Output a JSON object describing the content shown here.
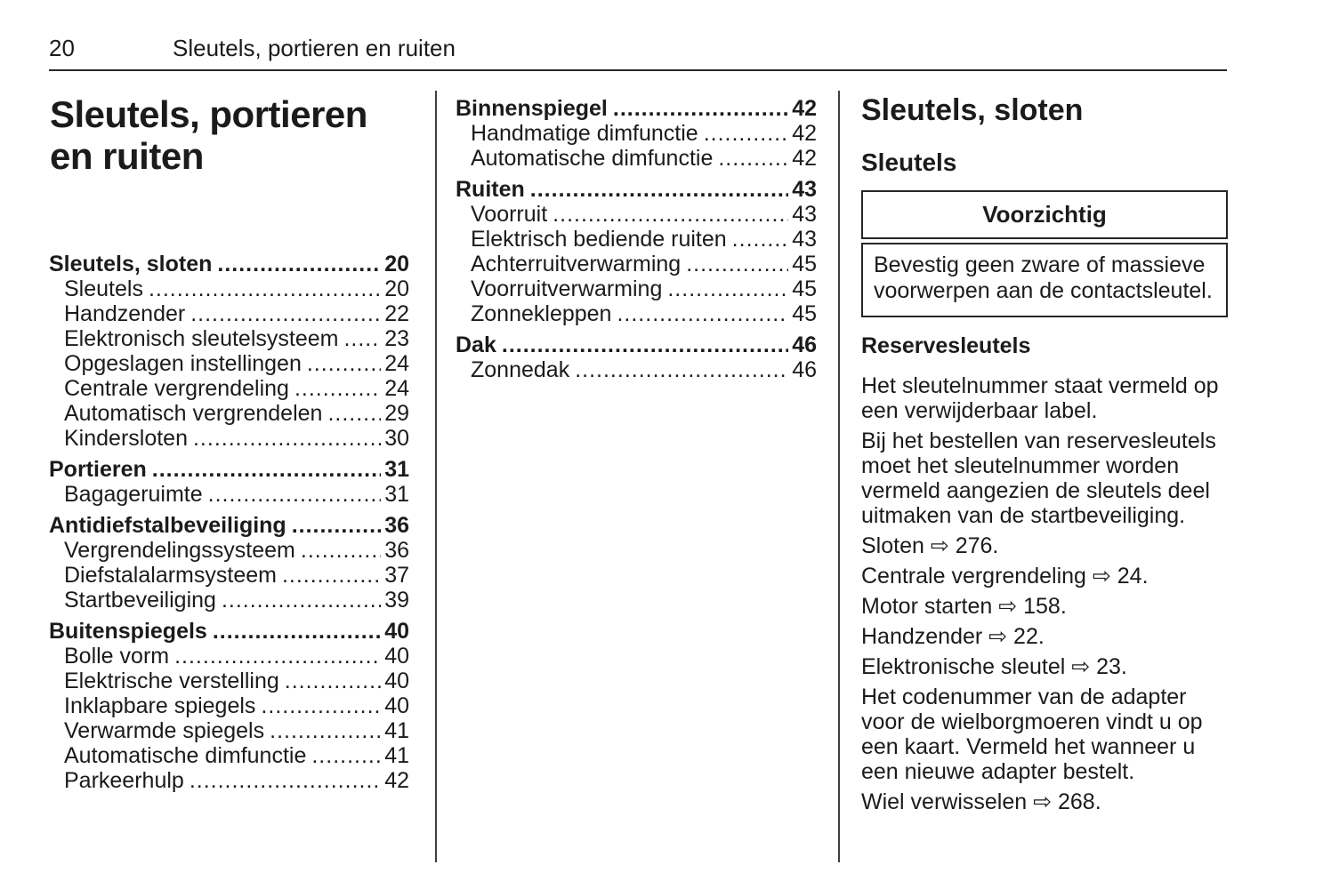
{
  "page": {
    "number": "20",
    "header_title": "Sleutels, portieren en ruiten"
  },
  "column1": {
    "title": "Sleutels, portieren en ruiten",
    "toc": [
      {
        "label": "Sleutels, sloten",
        "page": "20",
        "bold": true
      },
      {
        "label": "Sleutels",
        "page": "20",
        "indent": true
      },
      {
        "label": "Handzender",
        "page": "22",
        "indent": true
      },
      {
        "label": "Elektronisch sleutelsysteem",
        "page": "23",
        "indent": true
      },
      {
        "label": "Opgeslagen instellingen",
        "page": "24",
        "indent": true
      },
      {
        "label": "Centrale vergrendeling",
        "page": "24",
        "indent": true
      },
      {
        "label": "Automatisch vergrendelen",
        "page": "29",
        "indent": true
      },
      {
        "label": "Kindersloten",
        "page": "30",
        "indent": true
      },
      {
        "label": "Portieren",
        "page": "31",
        "bold": true
      },
      {
        "label": "Bagageruimte",
        "page": "31",
        "indent": true
      },
      {
        "label": "Antidiefstalbeveiliging",
        "page": "36",
        "bold": true
      },
      {
        "label": "Vergrendelingssysteem",
        "page": "36",
        "indent": true
      },
      {
        "label": "Diefstalalarmsysteem",
        "page": "37",
        "indent": true
      },
      {
        "label": "Startbeveiliging",
        "page": "39",
        "indent": true
      },
      {
        "label": "Buitenspiegels",
        "page": "40",
        "bold": true
      },
      {
        "label": "Bolle vorm",
        "page": "40",
        "indent": true
      },
      {
        "label": "Elektrische verstelling",
        "page": "40",
        "indent": true
      },
      {
        "label": "Inklapbare spiegels",
        "page": "40",
        "indent": true
      },
      {
        "label": "Verwarmde spiegels",
        "page": "41",
        "indent": true
      },
      {
        "label": "Automatische dimfunctie",
        "page": "41",
        "indent": true
      },
      {
        "label": "Parkeerhulp",
        "page": "42",
        "indent": true
      }
    ]
  },
  "column2": {
    "toc": [
      {
        "label": "Binnenspiegel",
        "page": "42",
        "bold": true
      },
      {
        "label": "Handmatige dimfunctie",
        "page": "42",
        "indent": true
      },
      {
        "label": "Automatische dimfunctie",
        "page": "42",
        "indent": true
      },
      {
        "label": "Ruiten",
        "page": "43",
        "bold": true
      },
      {
        "label": "Voorruit",
        "page": "43",
        "indent": true
      },
      {
        "label": "Elektrisch bediende ruiten",
        "page": "43",
        "indent": true
      },
      {
        "label": "Achterruitverwarming",
        "page": "45",
        "indent": true
      },
      {
        "label": "Voorruitverwarming",
        "page": "45",
        "indent": true
      },
      {
        "label": "Zonnekleppen",
        "page": "45",
        "indent": true
      },
      {
        "label": "Dak",
        "page": "46",
        "bold": true
      },
      {
        "label": "Zonnedak",
        "page": "46",
        "indent": true
      }
    ]
  },
  "column3": {
    "heading": "Sleutels, sloten",
    "subheading": "Sleutels",
    "caution": {
      "title": "Voorzichtig",
      "body": "Bevestig geen zware of massieve voorwerpen aan de contactsleutel."
    },
    "section_heading": "Reservesleutels",
    "paragraphs": [
      "Het sleutelnummer staat vermeld op een verwijderbaar label.",
      "Bij het bestellen van reservesleutels moet het sleutelnummer worden vermeld aangezien de sleutels deel uitmaken van de startbeveiliging.",
      "Sloten ⇨ 276.",
      "Centrale vergrendeling ⇨ 24.",
      "Motor starten ⇨ 158.",
      "Handzender ⇨ 22.",
      "Elektronische sleutel ⇨ 23.",
      "Het codenummer van de adapter voor de wielborgmoeren vindt u op een kaart. Vermeld het wanneer u een nieuwe adapter bestelt.",
      "Wiel verwisselen ⇨ 268."
    ]
  }
}
